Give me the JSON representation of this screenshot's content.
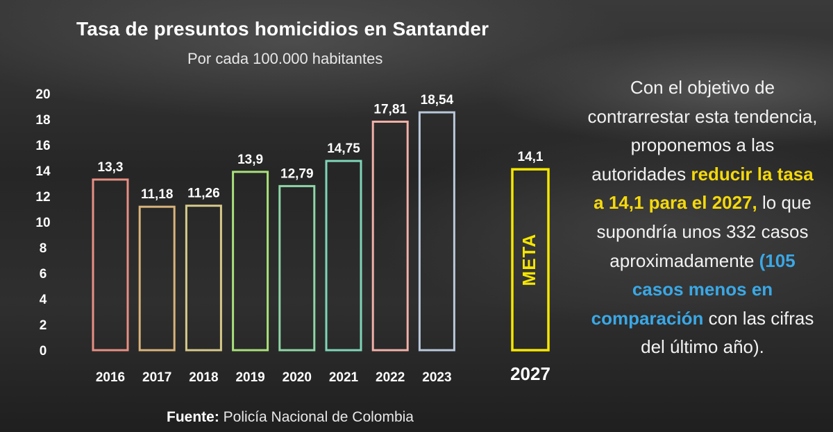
{
  "title": "Tasa de presuntos homicidios en Santander",
  "subtitle": "Por cada 100.000 habitantes",
  "source_label": "Fuente:",
  "source_text": "Policía Nacional de Colombia",
  "side_text": {
    "part1": "Con el objetivo de contrarrestar esta tendencia, proponemos a las autoridades ",
    "highlight1": "reducir la tasa a 14,1 para el 2027,",
    "part2": " lo que supondría unos 332 casos aproximadamente ",
    "highlight2": "(105 casos menos en comparación",
    "part3": " con las cifras del último año)."
  },
  "colors": {
    "highlight_yellow": "#f5d90a",
    "highlight_blue": "#3aa8e6"
  },
  "chart_data": {
    "type": "bar",
    "ylim": [
      0,
      20
    ],
    "yticks": [
      "0",
      "2",
      "4",
      "6",
      "8",
      "10",
      "12",
      "14",
      "16",
      "18",
      "20"
    ],
    "categories": [
      "2016",
      "2017",
      "2018",
      "2019",
      "2020",
      "2021",
      "2022",
      "2023"
    ],
    "values": [
      13.3,
      11.18,
      11.26,
      13.9,
      12.79,
      14.75,
      17.81,
      18.54
    ],
    "value_labels": [
      "13,3",
      "11,18",
      "11,26",
      "13,9",
      "12,79",
      "14,75",
      "17,81",
      "18,54"
    ],
    "bar_colors": [
      "#e88f84",
      "#d9b37a",
      "#d6c98a",
      "#a9e07a",
      "#8fd6a8",
      "#7ed6b8",
      "#f2b1a8",
      "#b9c8da"
    ],
    "target": {
      "category": "2027",
      "value": 14.1,
      "value_label": "14,1",
      "label": "META",
      "color": "#f5e600"
    }
  }
}
